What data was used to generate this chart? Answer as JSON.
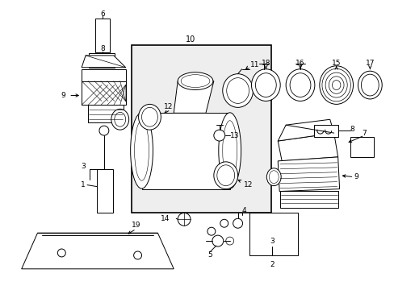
{
  "bg_color": "#ffffff",
  "line_color": "#000000",
  "gray_fill": "#d8d8d8",
  "light_gray": "#eeeeee",
  "figsize": [
    4.89,
    3.6
  ],
  "dpi": 100
}
